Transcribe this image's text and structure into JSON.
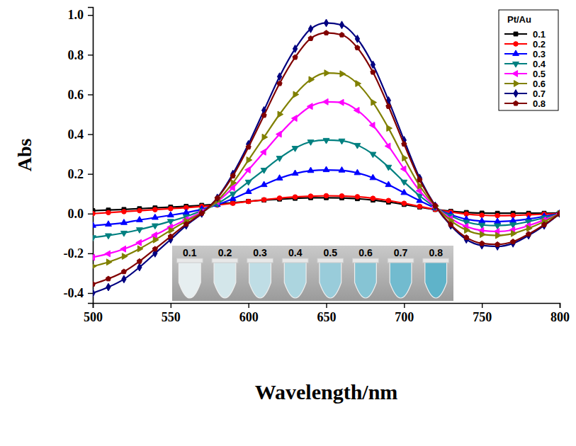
{
  "chart_data": {
    "type": "line",
    "xlabel": "Wavelength/nm",
    "ylabel": "Abs",
    "legend_title": "Pt/Au",
    "legend": "upper right",
    "xlim": [
      500,
      800
    ],
    "xticks": [
      500,
      550,
      600,
      650,
      700,
      750,
      800
    ],
    "ylim": [
      -0.45,
      1.04
    ],
    "yticks": [
      -0.4,
      -0.2,
      {
        "value": 0,
        "label": "0.0"
      },
      0.2,
      0.4,
      0.6,
      0.8,
      {
        "value": 1,
        "label": "1.0"
      }
    ],
    "x": [
      500,
      510,
      520,
      530,
      540,
      550,
      560,
      570,
      580,
      590,
      600,
      610,
      620,
      630,
      640,
      650,
      660,
      670,
      680,
      690,
      700,
      710,
      720,
      730,
      740,
      750,
      760,
      770,
      780,
      790,
      800
    ],
    "series": [
      {
        "name": "0.1",
        "color": "#000000",
        "marker": "square",
        "values": [
          0.015,
          0.018,
          0.021,
          0.025,
          0.029,
          0.033,
          0.037,
          0.042,
          0.048,
          0.055,
          0.062,
          0.068,
          0.073,
          0.077,
          0.08,
          0.08,
          0.079,
          0.075,
          0.068,
          0.058,
          0.046,
          0.033,
          0.021,
          0.012,
          0.006,
          0.003,
          0.002,
          0.002,
          0.002,
          0.002,
          0.003
        ]
      },
      {
        "name": "0.2",
        "color": "#ff0000",
        "marker": "circle",
        "values": [
          0.0,
          0.005,
          0.01,
          0.015,
          0.02,
          0.025,
          0.03,
          0.036,
          0.043,
          0.052,
          0.061,
          0.07,
          0.078,
          0.084,
          0.088,
          0.09,
          0.089,
          0.085,
          0.077,
          0.066,
          0.052,
          0.036,
          0.021,
          0.008,
          -0.002,
          -0.008,
          -0.01,
          -0.009,
          -0.006,
          -0.003,
          0.0
        ]
      },
      {
        "name": "0.3",
        "color": "#0000ff",
        "marker": "triangle-up",
        "values": [
          -0.06,
          -0.054,
          -0.046,
          -0.032,
          -0.02,
          -0.008,
          0.005,
          0.022,
          0.045,
          0.075,
          0.11,
          0.145,
          0.178,
          0.202,
          0.216,
          0.22,
          0.218,
          0.205,
          0.18,
          0.145,
          0.105,
          0.065,
          0.028,
          -0.005,
          -0.028,
          -0.038,
          -0.04,
          -0.036,
          -0.027,
          -0.014,
          0.0
        ]
      },
      {
        "name": "0.4",
        "color": "#008080",
        "marker": "triangle-down",
        "values": [
          -0.12,
          -0.11,
          -0.097,
          -0.08,
          -0.06,
          -0.038,
          -0.015,
          0.015,
          0.05,
          0.1,
          0.16,
          0.22,
          0.28,
          0.33,
          0.362,
          0.37,
          0.367,
          0.345,
          0.3,
          0.235,
          0.16,
          0.09,
          0.032,
          -0.012,
          -0.042,
          -0.057,
          -0.06,
          -0.055,
          -0.04,
          -0.021,
          0.0
        ]
      },
      {
        "name": "0.5",
        "color": "#ff00ff",
        "marker": "triangle-left",
        "values": [
          -0.22,
          -0.202,
          -0.178,
          -0.146,
          -0.108,
          -0.068,
          -0.03,
          0.008,
          0.06,
          0.13,
          0.22,
          0.31,
          0.4,
          0.48,
          0.54,
          0.563,
          0.56,
          0.52,
          0.445,
          0.34,
          0.225,
          0.115,
          0.035,
          -0.025,
          -0.065,
          -0.085,
          -0.09,
          -0.082,
          -0.06,
          -0.032,
          0.0
        ]
      },
      {
        "name": "0.6",
        "color": "#808000",
        "marker": "triangle-right",
        "values": [
          -0.265,
          -0.244,
          -0.215,
          -0.177,
          -0.132,
          -0.084,
          -0.038,
          0.004,
          0.065,
          0.155,
          0.27,
          0.385,
          0.5,
          0.6,
          0.675,
          0.708,
          0.704,
          0.655,
          0.56,
          0.43,
          0.28,
          0.14,
          0.038,
          -0.035,
          -0.083,
          -0.105,
          -0.11,
          -0.1,
          -0.074,
          -0.04,
          0.0
        ]
      },
      {
        "name": "0.7",
        "color": "#000080",
        "marker": "diamond",
        "values": [
          -0.4,
          -0.37,
          -0.33,
          -0.27,
          -0.2,
          -0.13,
          -0.06,
          0.0,
          0.08,
          0.2,
          0.35,
          0.52,
          0.69,
          0.83,
          0.93,
          0.96,
          0.95,
          0.88,
          0.75,
          0.57,
          0.37,
          0.18,
          0.04,
          -0.06,
          -0.13,
          -0.16,
          -0.165,
          -0.15,
          -0.11,
          -0.06,
          0.0
        ]
      },
      {
        "name": "0.8",
        "color": "#800000",
        "marker": "pentagon",
        "values": [
          -0.355,
          -0.328,
          -0.292,
          -0.24,
          -0.178,
          -0.115,
          -0.053,
          0.002,
          0.078,
          0.19,
          0.335,
          0.495,
          0.655,
          0.787,
          0.882,
          0.91,
          0.9,
          0.835,
          0.712,
          0.54,
          0.35,
          0.17,
          0.04,
          -0.055,
          -0.12,
          -0.15,
          -0.155,
          -0.141,
          -0.103,
          -0.056,
          0.0
        ]
      }
    ]
  }
}
